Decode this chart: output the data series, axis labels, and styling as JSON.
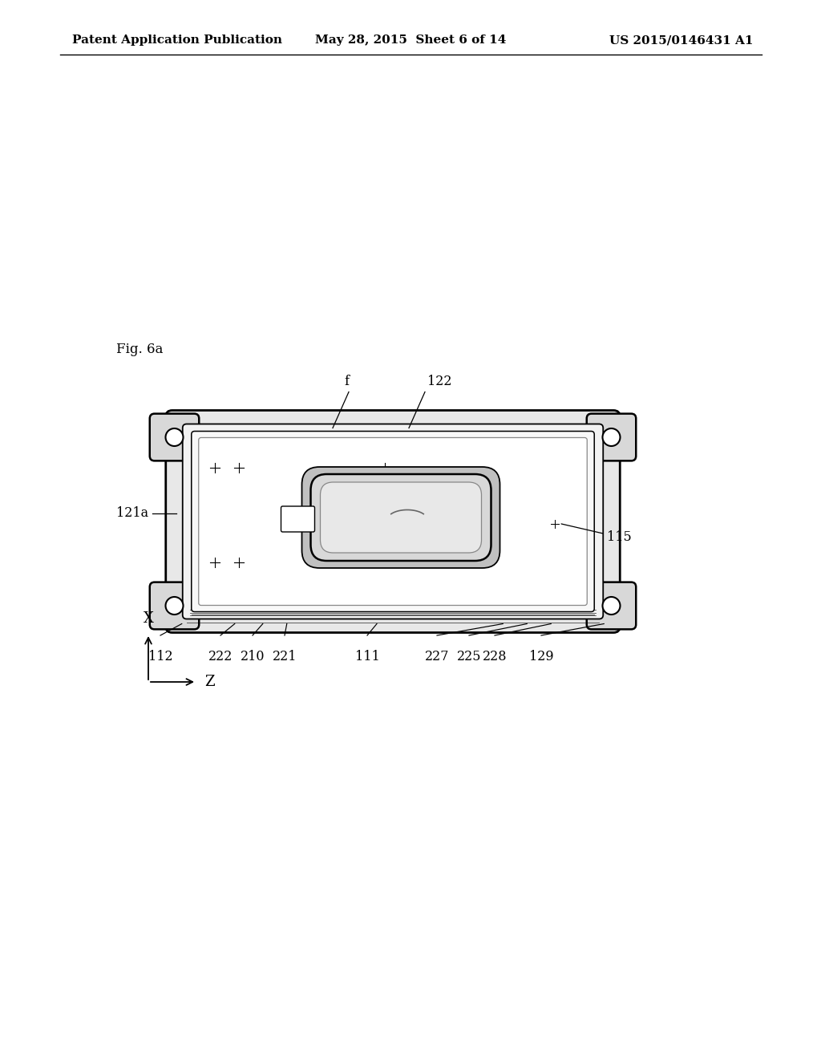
{
  "bg_color": "#ffffff",
  "header_left": "Patent Application Publication",
  "header_center": "May 28, 2015  Sheet 6 of 14",
  "header_right": "US 2015/0146431 A1",
  "fig_label": "Fig. 6a",
  "line_color": "#000000",
  "fill_light": "#ffffff",
  "fill_mid": "#e8e8e8",
  "fill_dark": "#cccccc"
}
